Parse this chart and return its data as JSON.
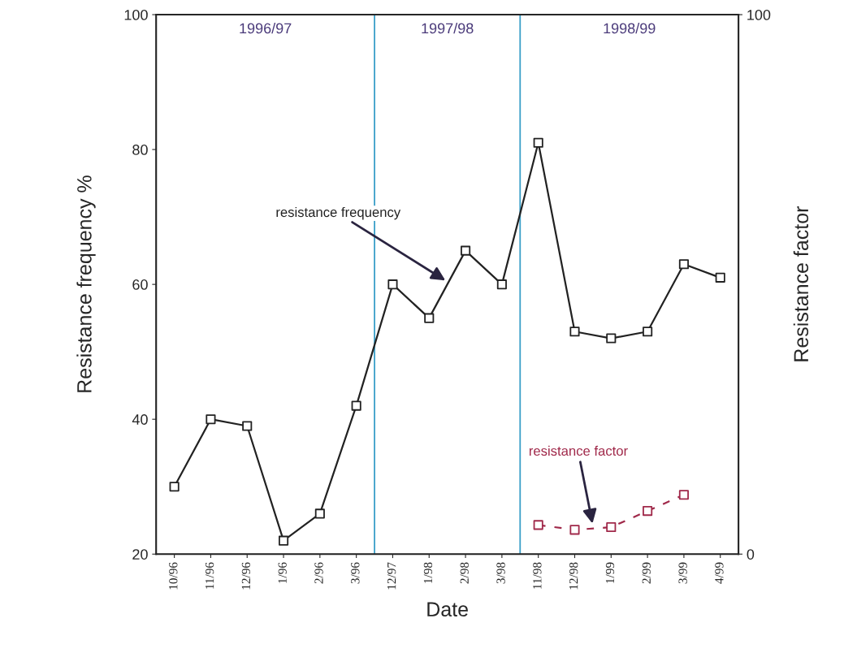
{
  "chart_data": {
    "type": "line",
    "xlabel": "Date",
    "ylabel": "Resistance frequency %",
    "y2label": "Resistance factor",
    "categories": [
      "10/96",
      "11/96",
      "12/96",
      "1/96",
      "2/96",
      "3/96",
      "12/97",
      "1/98",
      "2/98",
      "3/98",
      "11/98",
      "12/98",
      "1/99",
      "2/99",
      "3/99",
      "4/99"
    ],
    "series": [
      {
        "name": "resistance frequency",
        "color": "#222222",
        "marker": "square",
        "line_style": "solid",
        "values": [
          30,
          40,
          39,
          22,
          26,
          42,
          60,
          55,
          65,
          60,
          81,
          53,
          52,
          53,
          63,
          61
        ]
      },
      {
        "name": "resistance factor",
        "color": "#a0294a",
        "marker": "square",
        "line_style": "dashed",
        "axis": "y2",
        "values": [
          null,
          null,
          null,
          null,
          null,
          null,
          null,
          null,
          null,
          null,
          5.4,
          4.5,
          5,
          8,
          11,
          null
        ]
      }
    ],
    "ylim": [
      20,
      100
    ],
    "yticks": [
      20,
      40,
      60,
      80,
      100
    ],
    "y2lim": [
      0,
      100
    ],
    "y2ticks": [
      0,
      100
    ],
    "annotations": [
      "1996/97",
      "1997/98",
      "1998/99"
    ],
    "grid": false,
    "legend": false
  }
}
